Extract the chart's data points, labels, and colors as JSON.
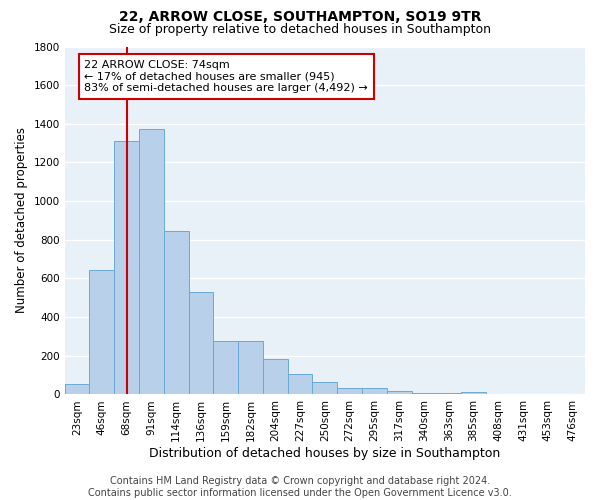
{
  "title": "22, ARROW CLOSE, SOUTHAMPTON, SO19 9TR",
  "subtitle": "Size of property relative to detached houses in Southampton",
  "xlabel": "Distribution of detached houses by size in Southampton",
  "ylabel": "Number of detached properties",
  "categories": [
    "23sqm",
    "46sqm",
    "68sqm",
    "91sqm",
    "114sqm",
    "136sqm",
    "159sqm",
    "182sqm",
    "204sqm",
    "227sqm",
    "250sqm",
    "272sqm",
    "295sqm",
    "317sqm",
    "340sqm",
    "363sqm",
    "385sqm",
    "408sqm",
    "431sqm",
    "453sqm",
    "476sqm"
  ],
  "values": [
    55,
    645,
    1310,
    1375,
    845,
    530,
    275,
    275,
    185,
    105,
    65,
    35,
    35,
    20,
    10,
    5,
    12,
    0,
    0,
    0,
    0
  ],
  "bar_color": "#b8d0ea",
  "bar_edge_color": "#6aaad4",
  "vline_x": 2,
  "vline_color": "#cc0000",
  "annotation_text": "22 ARROW CLOSE: 74sqm\n← 17% of detached houses are smaller (945)\n83% of semi-detached houses are larger (4,492) →",
  "annotation_box_color": "#ffffff",
  "annotation_box_edge_color": "#cc0000",
  "ylim": [
    0,
    1800
  ],
  "yticks": [
    0,
    200,
    400,
    600,
    800,
    1000,
    1200,
    1400,
    1600,
    1800
  ],
  "background_color": "#e8f0f8",
  "grid_color": "#ffffff",
  "footer": "Contains HM Land Registry data © Crown copyright and database right 2024.\nContains public sector information licensed under the Open Government Licence v3.0.",
  "title_fontsize": 10,
  "subtitle_fontsize": 9,
  "xlabel_fontsize": 9,
  "ylabel_fontsize": 8.5,
  "tick_fontsize": 7.5,
  "annotation_fontsize": 8,
  "footer_fontsize": 7
}
